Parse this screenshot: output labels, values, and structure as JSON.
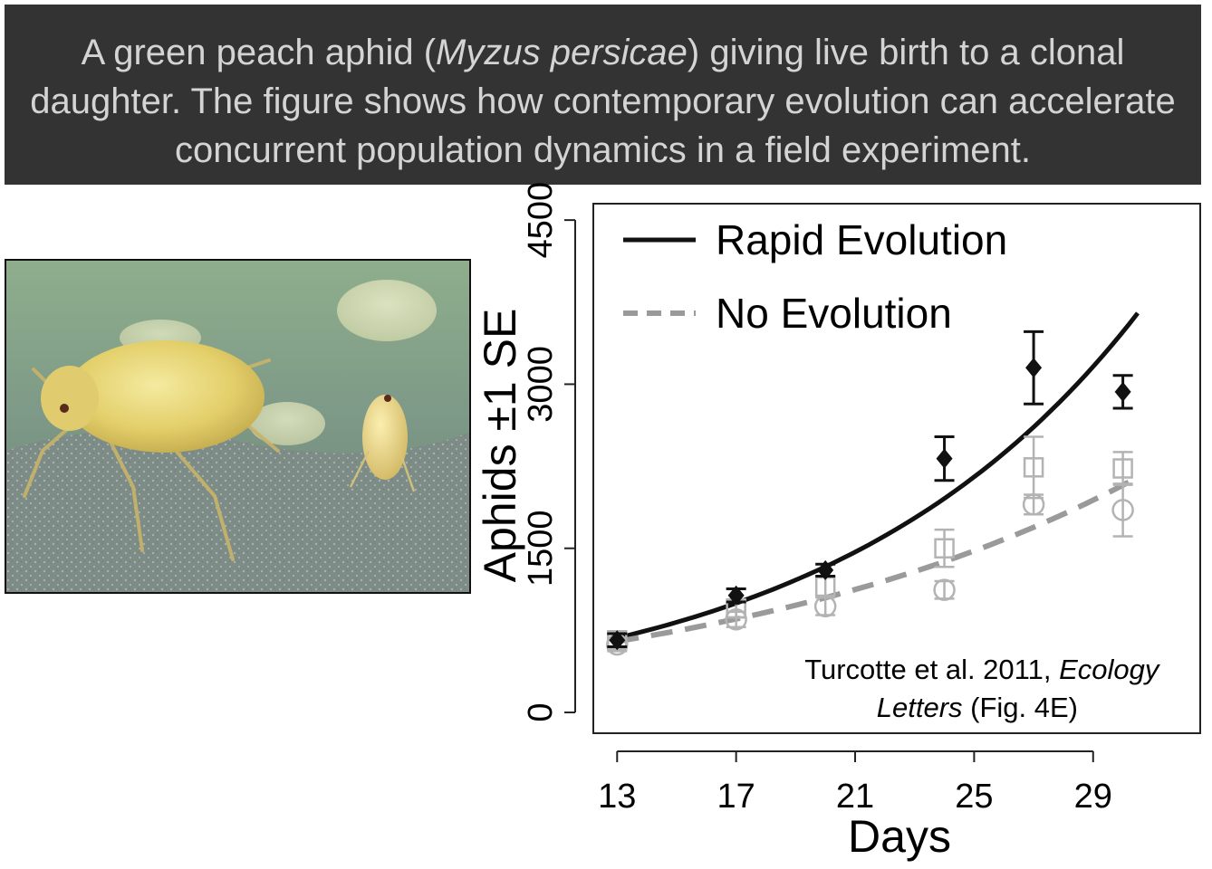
{
  "caption": {
    "before": "A green peach aphid (",
    "species": "Myzus persicae",
    "after": ") giving live birth to a clonal daughter. The figure shows how contemporary evolution can accelerate concurrent population dynamics in a field experiment."
  },
  "photo": {
    "subject": "green peach aphid giving live birth on a leaf"
  },
  "colors": {
    "banner_bg": "#333333",
    "banner_text": "#d4d4d4",
    "rapid": "#111111",
    "no_evolution": "#9a9a9a",
    "no_evolution_markers": "#b3b3b3"
  },
  "citation": {
    "prefix": "Turcotte et al. 2011, ",
    "journal_part1": "Ecology",
    "journal_part2": "Letters",
    "suffix": " (Fig. 4E)"
  },
  "chart_data": {
    "type": "scatter",
    "xlabel": "Days",
    "ylabel": "Aphids ±1 SE",
    "xlim": [
      12.2,
      32.6
    ],
    "ylim": [
      -190,
      4650
    ],
    "xticks": [
      13,
      17,
      21,
      25,
      29
    ],
    "yticks": [
      0,
      1500,
      3000,
      4500
    ],
    "legend_position": "top-left",
    "legend": [
      {
        "name": "Rapid Evolution",
        "style": "solid"
      },
      {
        "name": "No Evolution",
        "style": "dashed"
      }
    ],
    "series": [
      {
        "name": "Rapid Evolution",
        "marker": "diamond",
        "points": [
          {
            "x": 13,
            "y": 660,
            "se": 60
          },
          {
            "x": 17,
            "y": 1070,
            "se": 60
          },
          {
            "x": 20,
            "y": 1300,
            "se": 55
          },
          {
            "x": 24,
            "y": 2320,
            "se": 200
          },
          {
            "x": 27,
            "y": 3150,
            "se": 330
          },
          {
            "x": 30,
            "y": 2930,
            "se": 150
          }
        ],
        "fit": {
          "model": "exponential",
          "x": [
            13,
            30.5
          ],
          "y": [
            680,
            3650
          ]
        }
      },
      {
        "name": "No Evolution",
        "marker": "square",
        "points": [
          {
            "x": 13,
            "y": 660,
            "se": 80
          },
          {
            "x": 17,
            "y": 950,
            "se": 80
          },
          {
            "x": 20,
            "y": 1150,
            "se": 90
          },
          {
            "x": 24,
            "y": 1500,
            "se": 170
          },
          {
            "x": 27,
            "y": 2240,
            "se": 280
          },
          {
            "x": 30,
            "y": 2230,
            "se": 150
          }
        ],
        "fit": {
          "model": "exponential",
          "x": [
            13,
            30.5
          ],
          "y": [
            650,
            2150
          ]
        }
      },
      {
        "name": "No Evolution",
        "marker": "circle",
        "points": [
          {
            "x": 13,
            "y": 620,
            "se": 60
          },
          {
            "x": 17,
            "y": 850,
            "se": 70
          },
          {
            "x": 20,
            "y": 970,
            "se": 80
          },
          {
            "x": 24,
            "y": 1120,
            "se": 80
          },
          {
            "x": 27,
            "y": 1900,
            "se": 90
          },
          {
            "x": 30,
            "y": 1850,
            "se": 240
          }
        ]
      }
    ]
  }
}
